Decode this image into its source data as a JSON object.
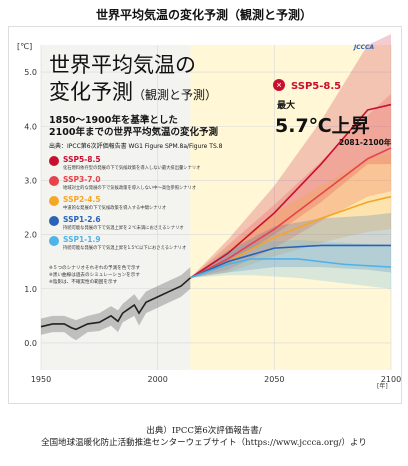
{
  "page_title": "世界平均気温の変化予測（観測と予測）",
  "caption_line1": "出典）IPCC第6次評価報告書/",
  "caption_line2": "全国地球温暖化防止活動推進センターウェブサイト（https://www.jccca.org/）より",
  "logo_text": "JCCCA",
  "headline_line1": "世界平均気温の",
  "headline_line2_main": "変化予測",
  "headline_line2_sub": "（観測と予測）",
  "subtitle_line1": "1850～1900年を基準とした",
  "subtitle_line2": "2100年までの世界平均気温の変化予測",
  "source_note": "出典：IPCC第6次評価報告書 WG1 Figure SPM.8a/Figure TS.8",
  "max_badge_label": "SSP5-8.5",
  "max_prefix": "最大",
  "max_value": "5.7℃上昇",
  "max_period": "2081-2100年",
  "footnote_1": "※５つのシナリオそれぞれの予測を色で示す",
  "footnote_2": "※黒い曲線は過去のシミュレーションを示す",
  "footnote_3": "※陰影は、不確実性の範囲を示す",
  "colors": {
    "ssp585": "#c8102e",
    "ssp370": "#e8424a",
    "ssp245": "#f5a623",
    "ssp126": "#2a62b8",
    "ssp119": "#4fb3e8",
    "historical": "#222222",
    "projection_bg": "#fff7d6"
  },
  "chart_data": {
    "type": "line",
    "xlabel": "",
    "ylabel": "",
    "x_unit": "[年]",
    "y_unit": "[℃]",
    "xlim": [
      1950,
      2100
    ],
    "ylim": [
      -0.5,
      5.5
    ],
    "x_ticks": [
      1950,
      2000,
      2050,
      2100
    ],
    "y_ticks": [
      0.0,
      1.0,
      2.0,
      3.0,
      4.0,
      5.0
    ],
    "y_tick_labels": [
      "0.0",
      "1.0",
      "2.0",
      "3.0",
      "4.0",
      "5.0"
    ],
    "x_tick_labels": [
      "1950",
      "2000",
      "2050",
      "2100"
    ],
    "projection_start": 2014,
    "series": [
      {
        "name": "SSP5-8.5",
        "desc": "化石燃料依存型の発展の下で気候政策を導入しない最大排出量シナリオ",
        "color_key": "ssp585",
        "x": [
          2014,
          2030,
          2050,
          2070,
          2090,
          2100
        ],
        "y": [
          1.2,
          1.65,
          2.4,
          3.3,
          4.3,
          4.4
        ],
        "band_low": [
          1.2,
          1.45,
          2.0,
          2.6,
          3.3,
          3.3
        ],
        "band_high": [
          1.2,
          1.9,
          2.9,
          4.1,
          5.5,
          5.7
        ]
      },
      {
        "name": "SSP3-7.0",
        "desc": "地域対立的な発展の下で気候政策を導入しない中～高位参照シナリオ",
        "color_key": "ssp370",
        "x": [
          2014,
          2030,
          2050,
          2070,
          2090,
          2100
        ],
        "y": [
          1.2,
          1.55,
          2.1,
          2.75,
          3.4,
          3.6
        ],
        "band_low": [
          1.2,
          1.35,
          1.75,
          2.25,
          2.7,
          2.8
        ],
        "band_high": [
          1.2,
          1.8,
          2.55,
          3.35,
          4.2,
          4.6
        ]
      },
      {
        "name": "SSP2-4.5",
        "desc": "中道的な発展の下で気候政策を導入する中間シナリオ",
        "color_key": "ssp245",
        "x": [
          2014,
          2030,
          2050,
          2070,
          2090,
          2100
        ],
        "y": [
          1.2,
          1.5,
          1.95,
          2.3,
          2.6,
          2.7
        ],
        "band_low": [
          1.2,
          1.3,
          1.6,
          1.85,
          2.05,
          2.1
        ],
        "band_high": [
          1.2,
          1.75,
          2.4,
          2.9,
          3.4,
          3.5
        ]
      },
      {
        "name": "SSP1-2.6",
        "desc": "持続可能な発展の下で気温上昇を２℃未満におさえるシナリオ",
        "color_key": "ssp126",
        "x": [
          2014,
          2030,
          2050,
          2070,
          2090,
          2100
        ],
        "y": [
          1.2,
          1.5,
          1.75,
          1.8,
          1.8,
          1.8
        ],
        "band_low": [
          1.2,
          1.3,
          1.4,
          1.4,
          1.35,
          1.3
        ],
        "band_high": [
          1.2,
          1.7,
          2.15,
          2.3,
          2.35,
          2.4
        ]
      },
      {
        "name": "SSP1-1.9",
        "desc": "持続可能な発展の下で気温上昇を1.5℃以下におさえるシナリオ",
        "color_key": "ssp119",
        "x": [
          2014,
          2030,
          2040,
          2060,
          2080,
          2100
        ],
        "y": [
          1.2,
          1.45,
          1.55,
          1.55,
          1.45,
          1.4
        ],
        "band_low": [
          1.2,
          1.25,
          1.25,
          1.2,
          1.1,
          1.0
        ],
        "band_high": [
          1.2,
          1.7,
          1.85,
          1.9,
          1.85,
          1.8
        ]
      },
      {
        "name": "historical",
        "color_key": "historical",
        "x": [
          1950,
          1955,
          1960,
          1963,
          1965,
          1970,
          1975,
          1980,
          1983,
          1985,
          1990,
          1992,
          1995,
          2000,
          2005,
          2010,
          2014
        ],
        "y": [
          0.3,
          0.35,
          0.35,
          0.28,
          0.25,
          0.35,
          0.38,
          0.5,
          0.4,
          0.55,
          0.7,
          0.55,
          0.75,
          0.85,
          0.95,
          1.05,
          1.2
        ],
        "band_low": [
          0.15,
          0.2,
          0.2,
          0.1,
          0.05,
          0.2,
          0.22,
          0.32,
          0.2,
          0.38,
          0.5,
          0.32,
          0.55,
          0.65,
          0.75,
          0.85,
          1.0
        ],
        "band_high": [
          0.45,
          0.5,
          0.5,
          0.45,
          0.42,
          0.5,
          0.55,
          0.68,
          0.6,
          0.72,
          0.9,
          0.78,
          0.95,
          1.05,
          1.15,
          1.25,
          1.4
        ]
      }
    ],
    "legend": [
      "SSP5-8.5",
      "SSP3-7.0",
      "SSP2-4.5",
      "SSP1-2.6",
      "SSP1-1.9"
    ],
    "legend_placement": "middle-left",
    "grid": true
  }
}
